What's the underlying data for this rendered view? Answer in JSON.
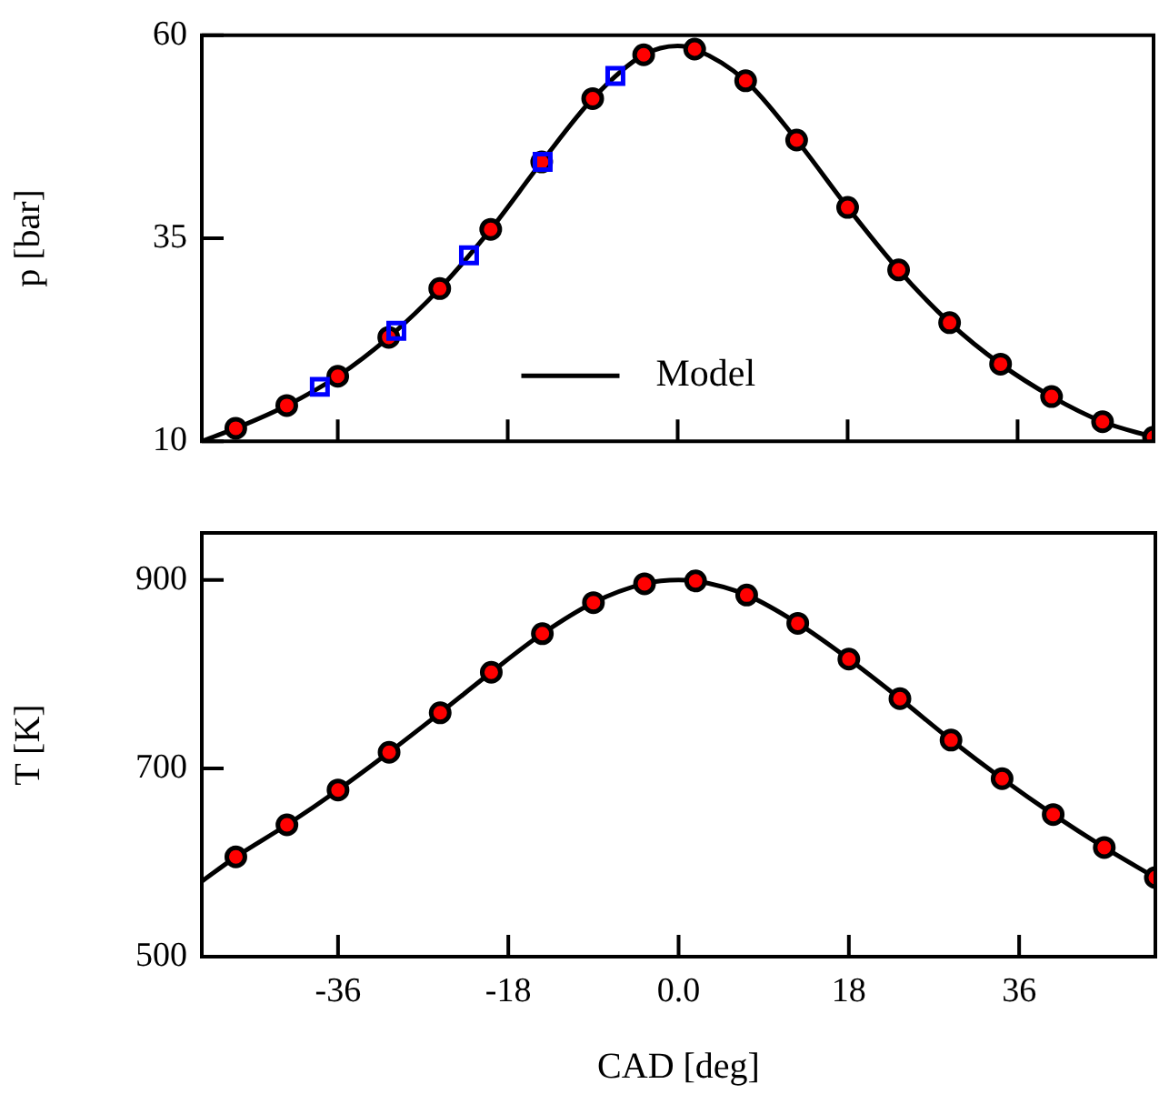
{
  "chart_data": [
    {
      "type": "line",
      "ylabel": "p [bar]",
      "xlim": [
        -50.4,
        50.4
      ],
      "xticks": [
        -36,
        -18,
        0,
        18,
        36
      ],
      "ylim": [
        10,
        60
      ],
      "yticks": [
        10,
        35,
        60
      ],
      "tick_labels": "y",
      "grid": false,
      "legend": "bottom",
      "series": [
        {
          "name": "Model",
          "color": "#000000",
          "marker": "none",
          "line_style": "solid",
          "x": [
            -50.4,
            -46.8,
            -41.4,
            -36,
            -30.6,
            -25.2,
            -19.8,
            -14.4,
            -9,
            -3.6,
            0,
            1.8,
            7.2,
            12.6,
            18,
            23.4,
            28.8,
            34.2,
            39.6,
            45,
            50.4
          ],
          "values": [
            10.0,
            11.6,
            14.4,
            18.0,
            22.8,
            28.8,
            36.1,
            44.4,
            52.2,
            57.6,
            58.7,
            58.3,
            54.4,
            47.1,
            38.8,
            31.1,
            24.6,
            19.5,
            15.5,
            12.4,
            10.5
          ]
        },
        {
          "type": "scatter",
          "color": "#ff0000",
          "marker": "circle",
          "x": [
            -46.8,
            -41.4,
            -36,
            -30.6,
            -25.2,
            -19.8,
            -14.4,
            -9,
            -3.6,
            1.8,
            7.2,
            12.6,
            18,
            23.4,
            28.8,
            34.2,
            39.6,
            45,
            50.4
          ],
          "values": [
            11.6,
            14.4,
            18.0,
            22.8,
            28.8,
            36.1,
            44.4,
            52.2,
            57.6,
            58.3,
            54.4,
            47.1,
            38.8,
            31.1,
            24.6,
            19.5,
            15.5,
            12.4,
            10.5
          ]
        },
        {
          "type": "scatter",
          "color": "#0000ff",
          "marker": "square",
          "x": [
            -37.9,
            -29.8,
            -22.1,
            -14.3,
            -6.6
          ],
          "values": [
            16.7,
            23.6,
            32.9,
            44.4,
            55.0
          ]
        }
      ]
    },
    {
      "type": "line",
      "xlabel": "CAD [deg]",
      "ylabel": "T [K]",
      "xlim": [
        -50.4,
        50.4
      ],
      "xticks": [
        -36,
        -18,
        {
          "value": 0,
          "label": "0.0"
        },
        18,
        36
      ],
      "ylim": [
        500,
        950
      ],
      "yticks": [
        500,
        700,
        900
      ],
      "grid": false,
      "series": [
        {
          "color": "#000000",
          "marker": "none",
          "line_style": "solid",
          "x": [
            -50.4,
            -46.8,
            -41.4,
            -36,
            -30.6,
            -25.2,
            -19.8,
            -14.4,
            -9,
            -3.6,
            0,
            1.8,
            7.2,
            12.6,
            18,
            23.4,
            28.8,
            34.2,
            39.6,
            45,
            50.4
          ],
          "values": [
            580,
            606,
            640,
            677,
            717,
            759,
            802,
            843,
            876,
            896,
            900,
            899,
            884,
            854,
            816,
            774,
            730,
            689,
            651,
            616,
            584
          ]
        },
        {
          "type": "scatter",
          "color": "#ff0000",
          "marker": "circle",
          "x": [
            -46.8,
            -41.4,
            -36,
            -30.6,
            -25.2,
            -19.8,
            -14.4,
            -9,
            -3.6,
            1.8,
            7.2,
            12.6,
            18,
            23.4,
            28.8,
            34.2,
            39.6,
            45,
            50.4
          ],
          "values": [
            606,
            640,
            677,
            717,
            759,
            802,
            843,
            876,
            896,
            899,
            884,
            854,
            816,
            774,
            730,
            689,
            651,
            616,
            584
          ]
        }
      ]
    }
  ]
}
